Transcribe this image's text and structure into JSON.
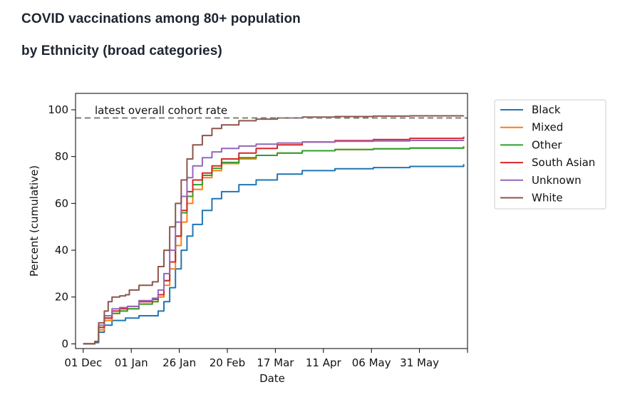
{
  "page": {
    "title": "COVID vaccinations among 80+ population",
    "subtitle": "by Ethnicity (broad categories)"
  },
  "chart_data": {
    "type": "line",
    "xlabel": "Date",
    "ylabel": "Percent (cumulative)",
    "x_ticks": [
      "01 Dec",
      "01 Jan",
      "26 Jan",
      "20 Feb",
      "17 Mar",
      "11 Apr",
      "06 May",
      "31 May"
    ],
    "x_start": "2020-11-27",
    "x_end": "2021-06-19",
    "ylim": [
      -2,
      107
    ],
    "y_ticks": [
      0,
      20,
      40,
      60,
      80,
      100
    ],
    "grid": false,
    "legend_position": "outside-right",
    "reference_line": {
      "value": 96.5,
      "label": "latest overall cohort rate",
      "color": "#7f7f7f",
      "style": "dashed"
    },
    "series": [
      {
        "name": "Black",
        "color": "#1f77b4",
        "points": [
          [
            "2020-12-01",
            0
          ],
          [
            "2020-12-07",
            0.5
          ],
          [
            "2020-12-09",
            5
          ],
          [
            "2020-12-12",
            8
          ],
          [
            "2020-12-16",
            10
          ],
          [
            "2020-12-20",
            10
          ],
          [
            "2020-12-23",
            11
          ],
          [
            "2020-12-30",
            12
          ],
          [
            "2021-01-06",
            12
          ],
          [
            "2021-01-09",
            14
          ],
          [
            "2021-01-12",
            18
          ],
          [
            "2021-01-15",
            24
          ],
          [
            "2021-01-18",
            32
          ],
          [
            "2021-01-21",
            40
          ],
          [
            "2021-01-24",
            46
          ],
          [
            "2021-01-27",
            51
          ],
          [
            "2021-02-01",
            57
          ],
          [
            "2021-02-06",
            62
          ],
          [
            "2021-02-11",
            65
          ],
          [
            "2021-02-20",
            68
          ],
          [
            "2021-03-01",
            70
          ],
          [
            "2021-03-12",
            72.5
          ],
          [
            "2021-03-25",
            74
          ],
          [
            "2021-04-11",
            74.8
          ],
          [
            "2021-05-01",
            75.3
          ],
          [
            "2021-05-20",
            75.8
          ],
          [
            "2021-06-17",
            76.8
          ]
        ]
      },
      {
        "name": "Mixed",
        "color": "#ff7f0e",
        "points": [
          [
            "2020-12-01",
            0
          ],
          [
            "2020-12-07",
            1
          ],
          [
            "2020-12-09",
            6
          ],
          [
            "2020-12-12",
            10
          ],
          [
            "2020-12-16",
            13
          ],
          [
            "2020-12-20",
            14
          ],
          [
            "2020-12-24",
            15
          ],
          [
            "2020-12-30",
            17
          ],
          [
            "2021-01-06",
            18
          ],
          [
            "2021-01-09",
            20
          ],
          [
            "2021-01-12",
            25
          ],
          [
            "2021-01-15",
            32
          ],
          [
            "2021-01-18",
            42
          ],
          [
            "2021-01-21",
            52
          ],
          [
            "2021-01-24",
            60
          ],
          [
            "2021-01-27",
            66
          ],
          [
            "2021-02-01",
            71
          ],
          [
            "2021-02-06",
            74
          ],
          [
            "2021-02-11",
            77
          ],
          [
            "2021-02-20",
            79
          ],
          [
            "2021-03-01",
            80.5
          ],
          [
            "2021-03-12",
            81.5
          ],
          [
            "2021-03-25",
            82.5
          ],
          [
            "2021-04-11",
            83
          ],
          [
            "2021-05-01",
            83.3
          ],
          [
            "2021-05-20",
            83.7
          ],
          [
            "2021-06-17",
            84.5
          ]
        ]
      },
      {
        "name": "Other",
        "color": "#2ca02c",
        "points": [
          [
            "2020-12-01",
            0
          ],
          [
            "2020-12-07",
            1
          ],
          [
            "2020-12-09",
            7
          ],
          [
            "2020-12-12",
            11
          ],
          [
            "2020-12-16",
            13
          ],
          [
            "2020-12-20",
            14
          ],
          [
            "2020-12-24",
            15
          ],
          [
            "2020-12-30",
            17
          ],
          [
            "2021-01-06",
            18
          ],
          [
            "2021-01-09",
            21
          ],
          [
            "2021-01-12",
            27
          ],
          [
            "2021-01-15",
            35
          ],
          [
            "2021-01-18",
            46
          ],
          [
            "2021-01-21",
            56
          ],
          [
            "2021-01-24",
            63
          ],
          [
            "2021-01-27",
            68
          ],
          [
            "2021-02-01",
            72
          ],
          [
            "2021-02-06",
            75
          ],
          [
            "2021-02-11",
            77.5
          ],
          [
            "2021-02-20",
            79.5
          ],
          [
            "2021-03-01",
            80.5
          ],
          [
            "2021-03-12",
            81.5
          ],
          [
            "2021-03-25",
            82.5
          ],
          [
            "2021-04-11",
            83
          ],
          [
            "2021-05-01",
            83.3
          ],
          [
            "2021-05-20",
            83.6
          ],
          [
            "2021-06-17",
            84.2
          ]
        ]
      },
      {
        "name": "South Asian",
        "color": "#d62728",
        "points": [
          [
            "2020-12-01",
            0
          ],
          [
            "2020-12-07",
            1
          ],
          [
            "2020-12-09",
            7
          ],
          [
            "2020-12-12",
            11
          ],
          [
            "2020-12-16",
            14
          ],
          [
            "2020-12-20",
            15
          ],
          [
            "2020-12-24",
            16
          ],
          [
            "2020-12-30",
            18
          ],
          [
            "2021-01-06",
            19
          ],
          [
            "2021-01-09",
            21
          ],
          [
            "2021-01-12",
            27
          ],
          [
            "2021-01-15",
            35
          ],
          [
            "2021-01-18",
            46
          ],
          [
            "2021-01-21",
            57
          ],
          [
            "2021-01-24",
            65
          ],
          [
            "2021-01-27",
            70
          ],
          [
            "2021-02-01",
            73
          ],
          [
            "2021-02-06",
            76
          ],
          [
            "2021-02-11",
            79
          ],
          [
            "2021-02-20",
            81.5
          ],
          [
            "2021-03-01",
            83.5
          ],
          [
            "2021-03-12",
            85
          ],
          [
            "2021-03-25",
            86.2
          ],
          [
            "2021-04-11",
            86.8
          ],
          [
            "2021-05-01",
            87.3
          ],
          [
            "2021-05-20",
            87.8
          ],
          [
            "2021-06-17",
            88.5
          ]
        ]
      },
      {
        "name": "Unknown",
        "color": "#9467bd",
        "points": [
          [
            "2020-12-01",
            0
          ],
          [
            "2020-12-07",
            1
          ],
          [
            "2020-12-09",
            8
          ],
          [
            "2020-12-12",
            12
          ],
          [
            "2020-12-16",
            15
          ],
          [
            "2020-12-20",
            15.5
          ],
          [
            "2020-12-24",
            16
          ],
          [
            "2020-12-30",
            18.5
          ],
          [
            "2021-01-06",
            19.5
          ],
          [
            "2021-01-09",
            23
          ],
          [
            "2021-01-12",
            30
          ],
          [
            "2021-01-15",
            40
          ],
          [
            "2021-01-18",
            52
          ],
          [
            "2021-01-21",
            63
          ],
          [
            "2021-01-24",
            71
          ],
          [
            "2021-01-27",
            76
          ],
          [
            "2021-02-01",
            79.5
          ],
          [
            "2021-02-06",
            82
          ],
          [
            "2021-02-11",
            83.5
          ],
          [
            "2021-02-20",
            84.5
          ],
          [
            "2021-03-01",
            85.3
          ],
          [
            "2021-03-12",
            85.8
          ],
          [
            "2021-03-25",
            86.2
          ],
          [
            "2021-04-11",
            86.5
          ],
          [
            "2021-05-01",
            86.7
          ],
          [
            "2021-05-20",
            86.9
          ],
          [
            "2021-06-17",
            87.1
          ]
        ]
      },
      {
        "name": "White",
        "color": "#8c564b",
        "points": [
          [
            "2020-12-01",
            0
          ],
          [
            "2020-12-07",
            1
          ],
          [
            "2020-12-09",
            9
          ],
          [
            "2020-12-12",
            14
          ],
          [
            "2020-12-14",
            18
          ],
          [
            "2020-12-16",
            20
          ],
          [
            "2020-12-20",
            20.5
          ],
          [
            "2020-12-23",
            21
          ],
          [
            "2020-12-25",
            23
          ],
          [
            "2020-12-30",
            25
          ],
          [
            "2021-01-06",
            26.5
          ],
          [
            "2021-01-09",
            33
          ],
          [
            "2021-01-12",
            40
          ],
          [
            "2021-01-15",
            50
          ],
          [
            "2021-01-18",
            60
          ],
          [
            "2021-01-21",
            70
          ],
          [
            "2021-01-24",
            79
          ],
          [
            "2021-01-27",
            85
          ],
          [
            "2021-02-01",
            89
          ],
          [
            "2021-02-06",
            92
          ],
          [
            "2021-02-11",
            93.5
          ],
          [
            "2021-02-20",
            95.3
          ],
          [
            "2021-03-01",
            96
          ],
          [
            "2021-03-12",
            96.5
          ],
          [
            "2021-03-25",
            96.9
          ],
          [
            "2021-04-11",
            97.1
          ],
          [
            "2021-05-01",
            97.3
          ],
          [
            "2021-05-20",
            97.4
          ],
          [
            "2021-06-17",
            97.5
          ]
        ]
      }
    ]
  }
}
